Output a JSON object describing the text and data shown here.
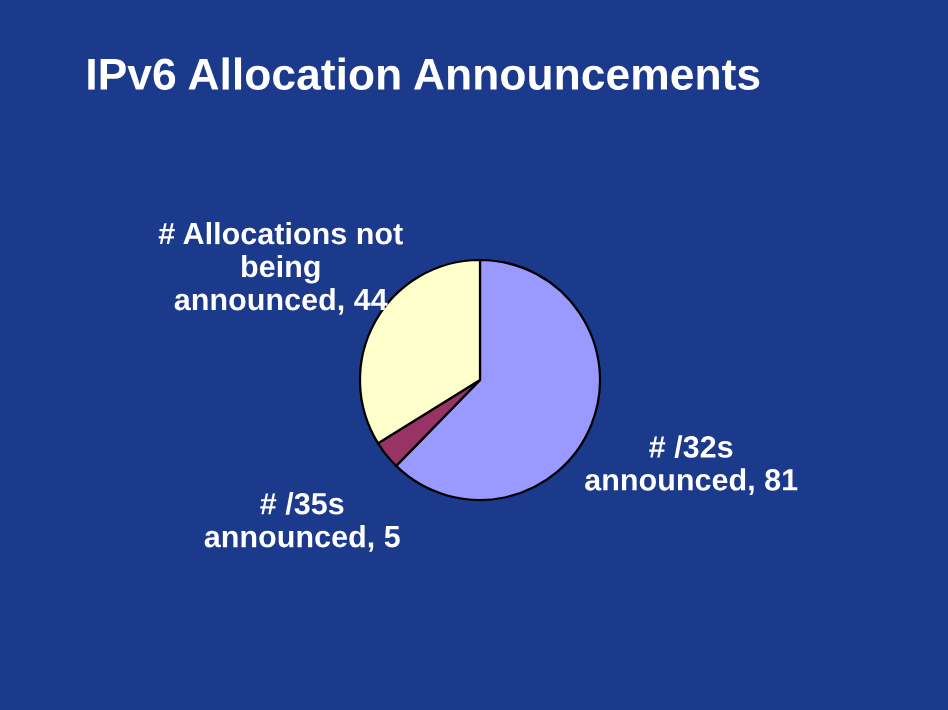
{
  "chart_data": {
    "type": "pie",
    "title": "IPv6 Allocation Announcements",
    "categories": [
      "# /32s\nannounced, 81",
      "# /35s\nannounced, 5",
      "# Allocations not\nbeing\nannounced, 44"
    ],
    "values": [
      81,
      5,
      44
    ],
    "colors": [
      "#9999ff",
      "#993366",
      "#ffffcc"
    ]
  }
}
